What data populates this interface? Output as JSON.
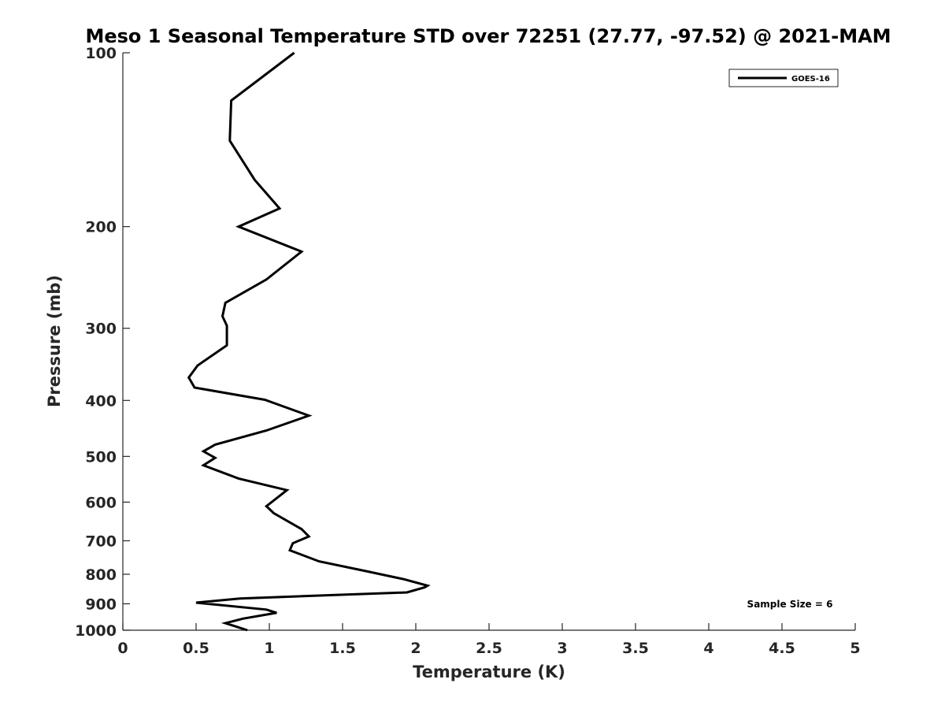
{
  "chart_data": {
    "type": "line",
    "title": "Meso 1 Seasonal Temperature STD over 72251 (27.77, -97.52) @ 2021-MAM",
    "xlabel": "Temperature (K)",
    "ylabel": "Pressure (mb)",
    "xlim": [
      0,
      5
    ],
    "ylim": [
      100,
      1000
    ],
    "y_scale": "log",
    "y_reversed": true,
    "grid": false,
    "x_ticks": [
      0,
      0.5,
      1,
      1.5,
      2,
      2.5,
      3,
      3.5,
      4,
      4.5,
      5
    ],
    "x_tick_labels": [
      "0",
      "0.5",
      "1",
      "1.5",
      "2",
      "2.5",
      "3",
      "3.5",
      "4",
      "4.5",
      "5"
    ],
    "y_ticks": [
      100,
      200,
      300,
      400,
      500,
      600,
      700,
      800,
      900,
      1000
    ],
    "y_tick_labels": [
      "100",
      "200",
      "300",
      "400",
      "500",
      "600",
      "700",
      "800",
      "900",
      "1000"
    ],
    "legend_position": "top-right",
    "annotation": "Sample Size = 6",
    "series": [
      {
        "name": "GOES-16",
        "color": "#000000",
        "points": [
          [
            1.17,
            100
          ],
          [
            0.74,
            121
          ],
          [
            0.73,
            142
          ],
          [
            0.9,
            166
          ],
          [
            1.07,
            186
          ],
          [
            0.79,
            200
          ],
          [
            1.22,
            221
          ],
          [
            0.98,
            247
          ],
          [
            0.7,
            271
          ],
          [
            0.68,
            286
          ],
          [
            0.71,
            297
          ],
          [
            0.71,
            321
          ],
          [
            0.51,
            348
          ],
          [
            0.45,
            365
          ],
          [
            0.49,
            380
          ],
          [
            0.97,
            399
          ],
          [
            1.27,
            425
          ],
          [
            0.98,
            451
          ],
          [
            0.63,
            477
          ],
          [
            0.55,
            490
          ],
          [
            0.63,
            503
          ],
          [
            0.55,
            518
          ],
          [
            0.79,
            546
          ],
          [
            1.12,
            572
          ],
          [
            0.98,
            610
          ],
          [
            1.03,
            627
          ],
          [
            1.22,
            668
          ],
          [
            1.27,
            688
          ],
          [
            1.16,
            707
          ],
          [
            1.14,
            727
          ],
          [
            1.34,
            760
          ],
          [
            1.67,
            791
          ],
          [
            1.92,
            816
          ],
          [
            2.08,
            837
          ],
          [
            2.06,
            843
          ],
          [
            1.94,
            860
          ],
          [
            0.8,
            881
          ],
          [
            0.5,
            896
          ],
          [
            0.98,
            921
          ],
          [
            1.05,
            933
          ],
          [
            0.82,
            955
          ],
          [
            0.7,
            972
          ],
          [
            0.77,
            985
          ],
          [
            0.85,
            1000
          ]
        ]
      }
    ]
  }
}
